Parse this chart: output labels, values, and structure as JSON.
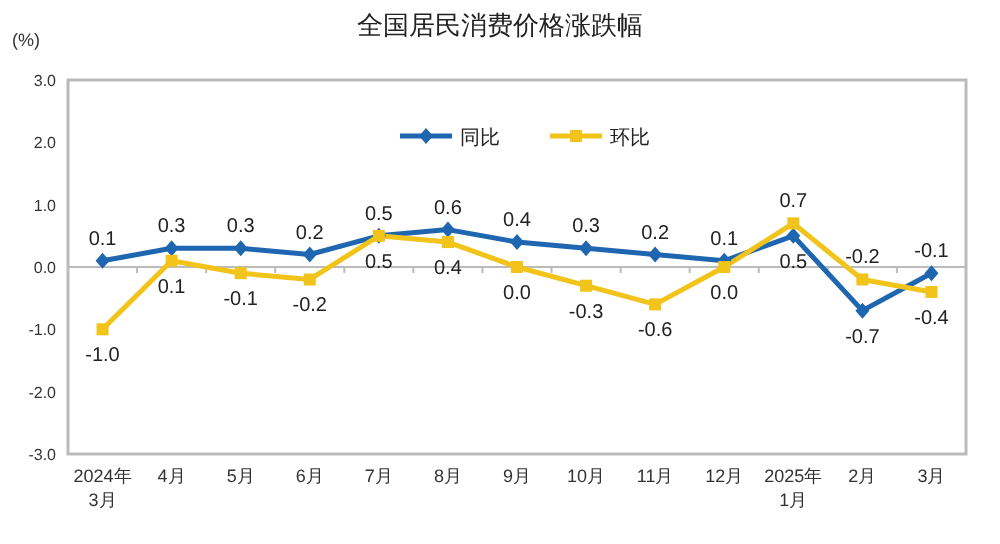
{
  "chart_data": {
    "type": "line",
    "title": "全国居民消费价格涨跌幅",
    "ylabel": "(%)",
    "categories": [
      "2024年\n3月",
      "4月",
      "5月",
      "6月",
      "7月",
      "8月",
      "9月",
      "10月",
      "11月",
      "12月",
      "2025年\n1月",
      "2月",
      "3月"
    ],
    "series": [
      {
        "name": "同比",
        "color": "#1f66b0",
        "marker": "diamond",
        "values": [
          0.1,
          0.3,
          0.3,
          0.2,
          0.5,
          0.6,
          0.4,
          0.3,
          0.2,
          0.1,
          0.5,
          -0.7,
          -0.1
        ],
        "value_labels": [
          "0.1",
          "0.3",
          "0.3",
          "0.2",
          "0.5",
          "0.6",
          "0.4",
          "0.3",
          "0.2",
          "0.1",
          "0.5",
          "-0.7",
          "-0.1"
        ]
      },
      {
        "name": "环比",
        "color": "#f2c318",
        "marker": "square",
        "values": [
          -1.0,
          0.1,
          -0.1,
          -0.2,
          0.5,
          0.4,
          0.0,
          -0.3,
          -0.6,
          0.0,
          0.7,
          -0.2,
          -0.4
        ],
        "value_labels": [
          "-1.0",
          "0.1",
          "-0.1",
          "-0.2",
          "0.5",
          "0.4",
          "0.0",
          "-0.3",
          "-0.6",
          "0.0",
          "0.7",
          "-0.2",
          "-0.4"
        ]
      }
    ],
    "ylim": [
      -3.0,
      3.0
    ],
    "yticks": [
      {
        "value": 3,
        "label": "3.0"
      },
      {
        "value": 2,
        "label": "2.0"
      },
      {
        "value": 1,
        "label": "1.0"
      },
      {
        "value": 0,
        "label": "0.0"
      },
      {
        "value": -1,
        "label": "-1.0"
      },
      {
        "value": -2,
        "label": "-2.0"
      },
      {
        "value": -3,
        "label": "-3.0"
      }
    ],
    "legend": "top"
  }
}
